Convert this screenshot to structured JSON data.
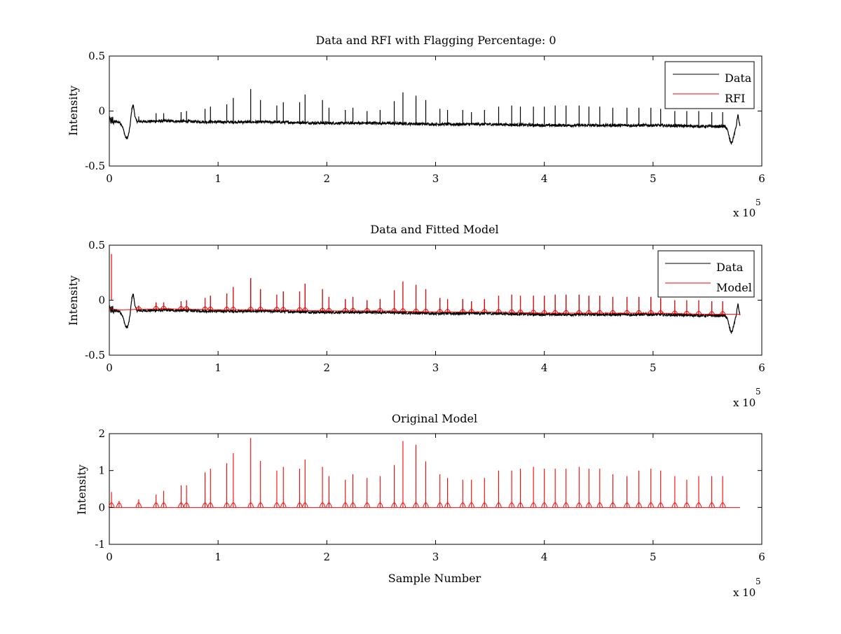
{
  "figure": {
    "background": "#ffffff"
  },
  "chart_data": [
    {
      "type": "line",
      "title": "Data and RFI with Flagging Percentage: 0",
      "xlabel": "",
      "ylabel": "Intensity",
      "xlim": [
        0,
        6
      ],
      "ylim": [
        -0.5,
        0.5
      ],
      "xticks": [
        "0",
        "1",
        "2",
        "3",
        "4",
        "5",
        "6"
      ],
      "yticks": [
        "-0.5",
        "0",
        "0.5"
      ],
      "x_exponent": {
        "base": "x 10",
        "power": "5"
      },
      "legend": {
        "position": "top-right",
        "entries": [
          {
            "name": "Data",
            "color": "#000000"
          },
          {
            "name": "RFI",
            "color": "#ff0000"
          }
        ]
      },
      "series": [
        {
          "name": "Data",
          "color": "#000000",
          "baseline": {
            "x": [
              0,
              0.1,
              0.5,
              1.0,
              1.5,
              2.0,
              2.5,
              3.0,
              3.5,
              4.0,
              4.5,
              5.0,
              5.5,
              5.8
            ],
            "y": [
              -0.09,
              -0.1,
              -0.09,
              -0.1,
              -0.1,
              -0.11,
              -0.11,
              -0.12,
              -0.12,
              -0.13,
              -0.13,
              -0.13,
              -0.14,
              -0.14
            ]
          },
          "dip_start": {
            "x": 0.16,
            "y": -0.24
          },
          "dip_end": {
            "x": 5.72,
            "y": -0.29
          },
          "peaks": [
            [
              0.27,
              -0.05
            ],
            [
              0.43,
              -0.02
            ],
            [
              0.5,
              -0.02
            ],
            [
              0.66,
              -0.01
            ],
            [
              0.71,
              0.0
            ],
            [
              0.88,
              0.02
            ],
            [
              0.93,
              0.04
            ],
            [
              1.08,
              0.06
            ],
            [
              1.14,
              0.12
            ],
            [
              1.3,
              0.2
            ],
            [
              1.39,
              0.1
            ],
            [
              1.54,
              0.05
            ],
            [
              1.6,
              0.08
            ],
            [
              1.75,
              0.08
            ],
            [
              1.8,
              0.15
            ],
            [
              1.96,
              0.1
            ],
            [
              2.02,
              0.03
            ],
            [
              2.17,
              0.01
            ],
            [
              2.24,
              0.03
            ],
            [
              2.37,
              0.0
            ],
            [
              2.49,
              0.01
            ],
            [
              2.62,
              0.09
            ],
            [
              2.7,
              0.17
            ],
            [
              2.82,
              0.14
            ],
            [
              2.91,
              0.1
            ],
            [
              3.04,
              0.02
            ],
            [
              3.11,
              0.01
            ],
            [
              3.25,
              0.01
            ],
            [
              3.33,
              -0.01
            ],
            [
              3.45,
              0.01
            ],
            [
              3.58,
              0.04
            ],
            [
              3.7,
              0.05
            ],
            [
              3.78,
              0.04
            ],
            [
              3.9,
              0.04
            ],
            [
              4.0,
              0.04
            ],
            [
              4.1,
              0.05
            ],
            [
              4.2,
              0.05
            ],
            [
              4.32,
              0.05
            ],
            [
              4.41,
              0.04
            ],
            [
              4.51,
              0.04
            ],
            [
              4.63,
              0.03
            ],
            [
              4.76,
              0.03
            ],
            [
              4.87,
              0.03
            ],
            [
              4.98,
              0.03
            ],
            [
              5.07,
              0.02
            ],
            [
              5.2,
              0.0
            ],
            [
              5.31,
              0.0
            ],
            [
              5.42,
              0.0
            ],
            [
              5.54,
              -0.01
            ],
            [
              5.64,
              -0.01
            ]
          ]
        },
        {
          "name": "RFI",
          "color": "#ff0000",
          "values": []
        }
      ]
    },
    {
      "type": "line",
      "title": "Data and Fitted Model",
      "xlabel": "",
      "ylabel": "Intensity",
      "xlim": [
        0,
        6
      ],
      "ylim": [
        -0.5,
        0.5
      ],
      "xticks": [
        "0",
        "1",
        "2",
        "3",
        "4",
        "5",
        "6"
      ],
      "yticks": [
        "-0.5",
        "0",
        "0.5"
      ],
      "x_exponent": {
        "base": "x 10",
        "power": "5"
      },
      "legend": {
        "position": "top-right",
        "entries": [
          {
            "name": "Data",
            "color": "#000000"
          },
          {
            "name": "Model",
            "color": "#ff0000"
          }
        ]
      },
      "series": [
        {
          "name": "Data",
          "color": "#000000",
          "same_as_panel": 0
        },
        {
          "name": "Model",
          "color": "#ff0000",
          "start_spike": {
            "x": 0.02,
            "y": 0.42
          },
          "peaks_scale": 1.0
        }
      ]
    },
    {
      "type": "line",
      "title": "Original Model",
      "xlabel": "Sample Number",
      "ylabel": "Intensity",
      "xlim": [
        0,
        6
      ],
      "ylim": [
        -1,
        2
      ],
      "xticks": [
        "0",
        "1",
        "2",
        "3",
        "4",
        "5",
        "6"
      ],
      "yticks": [
        "-1",
        "0",
        "1",
        "2"
      ],
      "x_exponent": {
        "base": "x 10",
        "power": "5"
      },
      "series": [
        {
          "name": "Original Model",
          "color": "#ff0000",
          "x_end": 5.8,
          "peaks": [
            [
              0.02,
              0.42
            ],
            [
              0.09,
              0.18
            ],
            [
              0.27,
              0.22
            ],
            [
              0.43,
              0.35
            ],
            [
              0.5,
              0.45
            ],
            [
              0.66,
              0.6
            ],
            [
              0.71,
              0.6
            ],
            [
              0.88,
              0.95
            ],
            [
              0.93,
              1.05
            ],
            [
              1.08,
              1.2
            ],
            [
              1.14,
              1.47
            ],
            [
              1.3,
              1.88
            ],
            [
              1.39,
              1.26
            ],
            [
              1.54,
              1.0
            ],
            [
              1.6,
              1.1
            ],
            [
              1.75,
              1.05
            ],
            [
              1.8,
              1.3
            ],
            [
              1.96,
              1.1
            ],
            [
              2.02,
              0.85
            ],
            [
              2.17,
              0.75
            ],
            [
              2.24,
              0.9
            ],
            [
              2.37,
              0.8
            ],
            [
              2.49,
              0.85
            ],
            [
              2.62,
              1.15
            ],
            [
              2.7,
              1.8
            ],
            [
              2.82,
              1.7
            ],
            [
              2.91,
              1.25
            ],
            [
              3.04,
              0.9
            ],
            [
              3.11,
              0.8
            ],
            [
              3.25,
              0.75
            ],
            [
              3.33,
              0.75
            ],
            [
              3.45,
              0.8
            ],
            [
              3.58,
              1.0
            ],
            [
              3.7,
              1.0
            ],
            [
              3.78,
              1.05
            ],
            [
              3.9,
              1.1
            ],
            [
              4.0,
              1.05
            ],
            [
              4.1,
              1.05
            ],
            [
              4.2,
              1.05
            ],
            [
              4.32,
              1.1
            ],
            [
              4.41,
              1.05
            ],
            [
              4.51,
              1.05
            ],
            [
              4.63,
              0.9
            ],
            [
              4.76,
              0.85
            ],
            [
              4.87,
              1.0
            ],
            [
              4.98,
              1.05
            ],
            [
              5.07,
              1.0
            ],
            [
              5.2,
              0.85
            ],
            [
              5.31,
              0.75
            ],
            [
              5.42,
              0.85
            ],
            [
              5.54,
              0.85
            ],
            [
              5.64,
              0.85
            ]
          ]
        }
      ]
    }
  ]
}
